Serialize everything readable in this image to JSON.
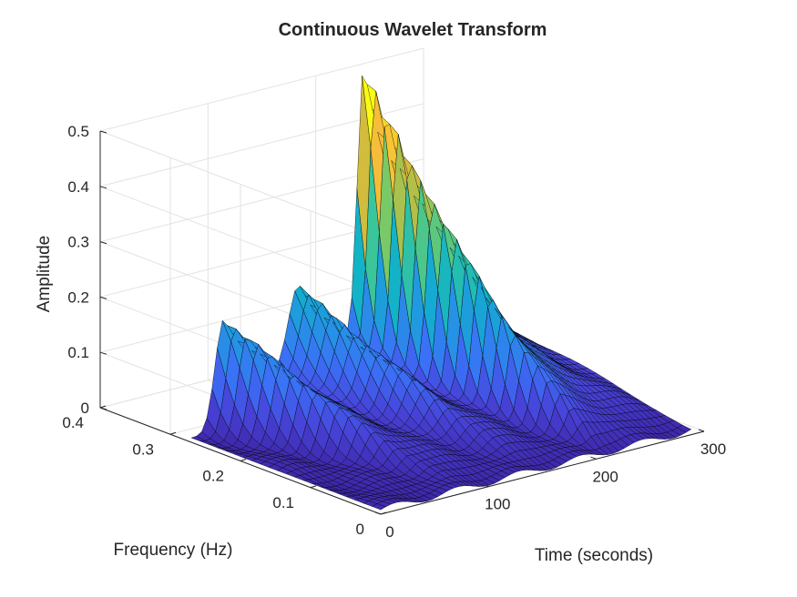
{
  "chart_data": {
    "type": "surface",
    "title": "Continuous Wavelet Transform",
    "xlabel": "Time (seconds)",
    "ylabel": "Frequency (Hz)",
    "zlabel": "Amplitude",
    "xlim": [
      0,
      300
    ],
    "ylim": [
      0,
      0.4
    ],
    "zlim": [
      0,
      0.5
    ],
    "x_ticks": [
      "0",
      "100",
      "200",
      "300"
    ],
    "y_ticks": [
      "0",
      "0.1",
      "0.2",
      "0.3",
      "0.4"
    ],
    "z_ticks": [
      "0",
      "0.1",
      "0.2",
      "0.3",
      "0.4",
      "0.5"
    ],
    "grid": true,
    "colormap": "parula",
    "colormap_stops": [
      "#3e26a8",
      "#4743d8",
      "#3b70f7",
      "#2494e4",
      "#10b1ca",
      "#36c59e",
      "#7ac967",
      "#c6bc3f",
      "#f9bd38",
      "#f9fb14"
    ],
    "peaks": [
      {
        "time": 40,
        "frequency": 0.27,
        "amplitude": 0.2
      },
      {
        "time": 100,
        "frequency": 0.27,
        "amplitude": 0.18
      },
      {
        "time": 180,
        "frequency": 0.27,
        "amplitude": 0.52
      }
    ]
  }
}
